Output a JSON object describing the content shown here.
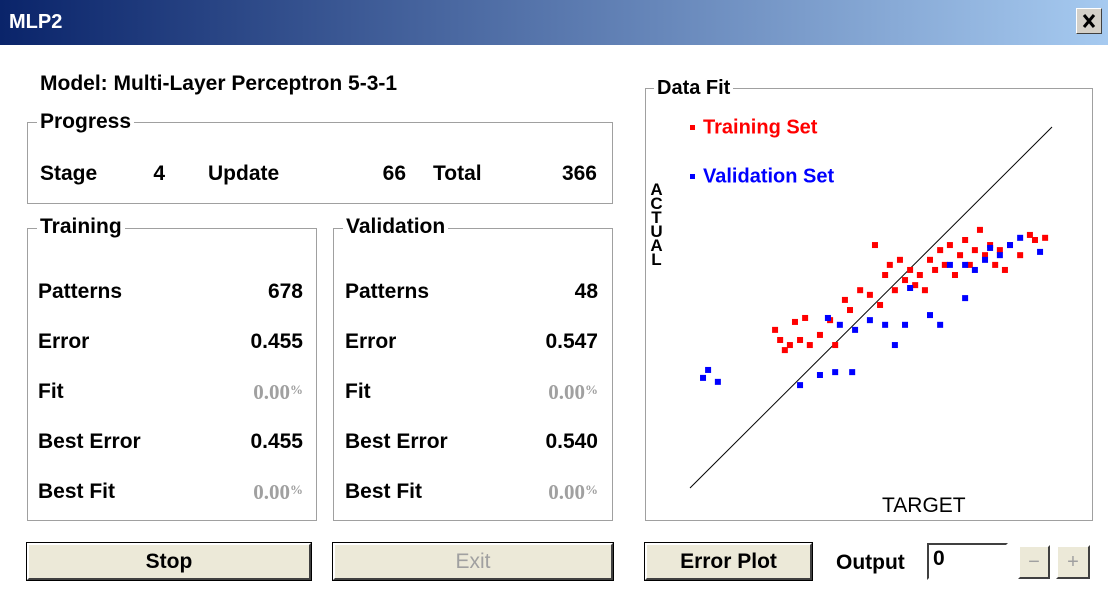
{
  "window": {
    "title": "MLP2"
  },
  "model": "Model:  Multi-Layer Perceptron 5-3-1",
  "progress": {
    "title": "Progress",
    "stage_label": "Stage",
    "stage": "4",
    "update_label": "Update",
    "update": "66",
    "total_label": "Total",
    "total": "366"
  },
  "training": {
    "title": "Training",
    "rows": [
      {
        "label": "Patterns",
        "value": "678"
      },
      {
        "label": "Error",
        "value": "0.455"
      },
      {
        "label": "Fit",
        "value": "0.00",
        "unit": "%"
      },
      {
        "label": "Best Error",
        "value": "0.455"
      },
      {
        "label": "Best Fit",
        "value": "0.00",
        "unit": "%"
      }
    ]
  },
  "validation": {
    "title": "Validation",
    "rows": [
      {
        "label": "Patterns",
        "value": "48"
      },
      {
        "label": "Error",
        "value": "0.547"
      },
      {
        "label": "Fit",
        "value": "0.00",
        "unit": "%"
      },
      {
        "label": "Best Error",
        "value": "0.540"
      },
      {
        "label": "Best Fit",
        "value": "0.00",
        "unit": "%"
      }
    ]
  },
  "data_fit": {
    "type": "scatter",
    "title": "Data Fit",
    "y_label": "ACTUAL",
    "x_label": "TARGET",
    "xlim": [
      0,
      100
    ],
    "ylim": [
      0,
      100
    ],
    "series": [
      {
        "name": "Training Set",
        "color": "#ff0000",
        "x": [
          23.5,
          24.9,
          27.6,
          30.4,
          33.1,
          26.2,
          29.0,
          31.8,
          35.9,
          38.7,
          40.1,
          42.8,
          44.2,
          47.0,
          49.7,
          52.5,
          51.1,
          53.9,
          55.2,
          56.6,
          58.0,
          59.4,
          60.8,
          62.2,
          63.5,
          64.9,
          66.3,
          67.7,
          69.1,
          70.4,
          71.8,
          73.2,
          74.6,
          76.0,
          77.3,
          78.7,
          80.1,
          81.5,
          82.9,
          84.3,
          85.6,
          87.0,
          88.4,
          91.2,
          93.9,
          95.3,
          98.1
        ],
        "y": [
          43.8,
          41.0,
          39.6,
          41.0,
          39.6,
          38.2,
          46.0,
          47.1,
          42.4,
          46.5,
          39.6,
          52.1,
          49.3,
          54.8,
          53.5,
          50.7,
          67.3,
          59.0,
          61.8,
          54.8,
          63.2,
          57.6,
          60.4,
          56.2,
          59.0,
          54.8,
          63.2,
          60.4,
          65.9,
          61.8,
          67.3,
          59.0,
          64.5,
          68.7,
          61.8,
          65.9,
          71.5,
          64.5,
          67.3,
          61.8,
          65.9,
          60.4,
          67.3,
          64.5,
          70.1,
          68.7,
          69.3
        ]
      },
      {
        "name": "Validation Set",
        "color": "#0000ff",
        "x": [
          3.6,
          5.0,
          7.7,
          30.4,
          35.9,
          40.1,
          44.8,
          38.1,
          41.4,
          45.6,
          49.7,
          53.9,
          56.6,
          59.4,
          60.8,
          66.3,
          69.1,
          71.8,
          76.0,
          76.0,
          78.7,
          81.5,
          82.9,
          85.6,
          88.4,
          91.2,
          96.7
        ],
        "y": [
          30.5,
          32.7,
          29.4,
          28.5,
          31.3,
          32.1,
          32.1,
          47.1,
          45.2,
          43.8,
          46.5,
          45.2,
          39.6,
          45.2,
          55.4,
          47.9,
          45.2,
          61.8,
          61.8,
          52.6,
          60.4,
          63.2,
          66.5,
          64.5,
          67.3,
          69.3,
          65.4
        ]
      }
    ]
  },
  "buttons": {
    "stop": "Stop",
    "exit": "Exit",
    "error_plot": "Error Plot",
    "output_label": "Output",
    "output_value": "0",
    "minus": "−",
    "plus": "+"
  }
}
